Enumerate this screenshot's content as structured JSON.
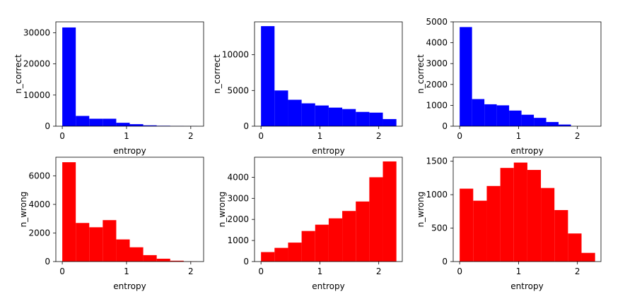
{
  "chart_data": [
    {
      "type": "bar",
      "xlabel": "entropy",
      "ylabel": "n_correct",
      "color": "#0000ff",
      "xlim": [
        -0.1,
        2.2
      ],
      "ylim": [
        0,
        33500
      ],
      "xticks": [
        "0",
        "1",
        "2"
      ],
      "yticks": [
        "0",
        "10000",
        "20000",
        "30000"
      ],
      "bin_edges": [
        0,
        0.21,
        0.42,
        0.63,
        0.84,
        1.05,
        1.26,
        1.47,
        1.68,
        1.89,
        2.1
      ],
      "values": [
        31700,
        3300,
        2400,
        2400,
        1100,
        650,
        280,
        150,
        60,
        20
      ]
    },
    {
      "type": "bar",
      "xlabel": "entropy",
      "ylabel": "n_correct",
      "color": "#0000ff",
      "xlim": [
        -0.11,
        2.4
      ],
      "ylim": [
        0,
        14600
      ],
      "xticks": [
        "0",
        "1",
        "2"
      ],
      "yticks": [
        "0",
        "5000",
        "10000"
      ],
      "bin_edges": [
        0,
        0.23,
        0.46,
        0.69,
        0.92,
        1.15,
        1.38,
        1.61,
        1.84,
        2.07,
        2.3
      ],
      "values": [
        14000,
        5000,
        3700,
        3200,
        2900,
        2600,
        2400,
        2000,
        1900,
        1000
      ]
    },
    {
      "type": "bar",
      "xlabel": "entropy",
      "ylabel": "n_correct",
      "color": "#0000ff",
      "xlim": [
        -0.11,
        2.4
      ],
      "ylim": [
        0,
        5000
      ],
      "xticks": [
        "0",
        "1",
        "2"
      ],
      "yticks": [
        "0",
        "1000",
        "2000",
        "3000",
        "4000",
        "5000"
      ],
      "bin_edges": [
        0,
        0.21,
        0.42,
        0.63,
        0.84,
        1.05,
        1.26,
        1.47,
        1.68,
        1.89,
        2.1
      ],
      "values": [
        4750,
        1300,
        1050,
        1000,
        750,
        550,
        400,
        200,
        80,
        0
      ]
    },
    {
      "type": "bar",
      "xlabel": "entropy",
      "ylabel": "n_wrong",
      "color": "#ff0000",
      "xlim": [
        -0.1,
        2.2
      ],
      "ylim": [
        0,
        7300
      ],
      "xticks": [
        "0",
        "1",
        "2"
      ],
      "yticks": [
        "0",
        "2000",
        "4000",
        "6000"
      ],
      "bin_edges": [
        0,
        0.21,
        0.42,
        0.63,
        0.84,
        1.05,
        1.26,
        1.47,
        1.68,
        1.89,
        2.1
      ],
      "values": [
        6950,
        2700,
        2400,
        2900,
        1550,
        1000,
        450,
        200,
        60,
        10
      ]
    },
    {
      "type": "bar",
      "xlabel": "entropy",
      "ylabel": "n_wrong",
      "color": "#ff0000",
      "xlim": [
        -0.11,
        2.4
      ],
      "ylim": [
        0,
        4950
      ],
      "xticks": [
        "0",
        "1",
        "2"
      ],
      "yticks": [
        "0",
        "1000",
        "2000",
        "3000",
        "4000"
      ],
      "bin_edges": [
        0,
        0.23,
        0.46,
        0.69,
        0.92,
        1.15,
        1.38,
        1.61,
        1.84,
        2.07,
        2.3
      ],
      "values": [
        450,
        650,
        900,
        1450,
        1750,
        2050,
        2400,
        2850,
        4000,
        4750
      ]
    },
    {
      "type": "bar",
      "xlabel": "entropy",
      "ylabel": "n_wrong",
      "color": "#ff0000",
      "xlim": [
        -0.11,
        2.4
      ],
      "ylim": [
        0,
        1560
      ],
      "xticks": [
        "0",
        "1",
        "2"
      ],
      "yticks": [
        "0",
        "500",
        "1000",
        "1500"
      ],
      "bin_edges": [
        0,
        0.23,
        0.46,
        0.69,
        0.92,
        1.15,
        1.38,
        1.61,
        1.84,
        2.07,
        2.3
      ],
      "values": [
        1090,
        910,
        1130,
        1400,
        1480,
        1370,
        1100,
        770,
        420,
        130
      ]
    }
  ]
}
